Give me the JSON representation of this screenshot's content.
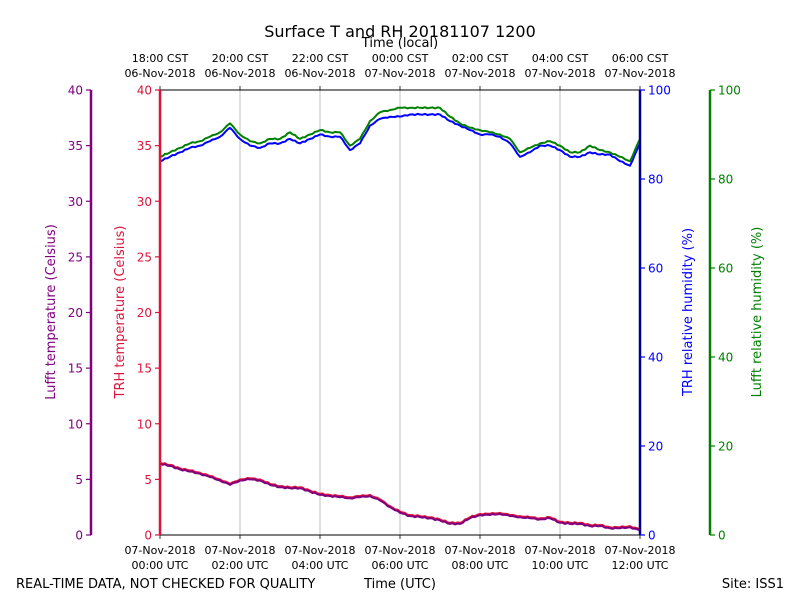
{
  "chart_data": {
    "type": "line",
    "title": "Surface T and RH 20181107 1200",
    "top_xlabel": "Time (local)",
    "xlabel": "Time (UTC)",
    "footer_left": "REAL-TIME DATA, NOT CHECKED FOR QUALITY",
    "footer_right": "Site: ISS1",
    "x_range_hours": [
      0,
      12
    ],
    "grid": "vertical",
    "bottom_ticks": [
      {
        "hour": 0,
        "line1": "07-Nov-2018",
        "line2": "00:00 UTC"
      },
      {
        "hour": 2,
        "line1": "07-Nov-2018",
        "line2": "02:00 UTC"
      },
      {
        "hour": 4,
        "line1": "07-Nov-2018",
        "line2": "04:00 UTC"
      },
      {
        "hour": 6,
        "line1": "07-Nov-2018",
        "line2": "06:00 UTC"
      },
      {
        "hour": 8,
        "line1": "07-Nov-2018",
        "line2": "08:00 UTC"
      },
      {
        "hour": 10,
        "line1": "07-Nov-2018",
        "line2": "10:00 UTC"
      },
      {
        "hour": 12,
        "line1": "07-Nov-2018",
        "line2": "12:00 UTC"
      }
    ],
    "top_ticks": [
      {
        "hour": 0,
        "line1": "18:00 CST",
        "line2": "06-Nov-2018"
      },
      {
        "hour": 2,
        "line1": "20:00 CST",
        "line2": "06-Nov-2018"
      },
      {
        "hour": 4,
        "line1": "22:00 CST",
        "line2": "06-Nov-2018"
      },
      {
        "hour": 6,
        "line1": "00:00 CST",
        "line2": "07-Nov-2018"
      },
      {
        "hour": 8,
        "line1": "02:00 CST",
        "line2": "07-Nov-2018"
      },
      {
        "hour": 10,
        "line1": "04:00 CST",
        "line2": "07-Nov-2018"
      },
      {
        "hour": 12,
        "line1": "06:00 CST",
        "line2": "07-Nov-2018"
      }
    ],
    "axes": {
      "lufft_temp": {
        "label": "Lufft temperature (Celsius)",
        "ylim": [
          0,
          40
        ],
        "ticks": [
          "0",
          "5",
          "10",
          "15",
          "20",
          "25",
          "30",
          "35",
          "40"
        ],
        "color": "#800080"
      },
      "trh_temp": {
        "label": "TRH temperature (Celsius)",
        "ylim": [
          0,
          40
        ],
        "ticks": [
          "0",
          "5",
          "10",
          "15",
          "20",
          "25",
          "30",
          "35",
          "40"
        ],
        "color": "#dc143c"
      },
      "trh_rh": {
        "label": "TRH relative humidity (%)",
        "ylim": [
          0,
          100
        ],
        "ticks": [
          "0",
          "20",
          "40",
          "60",
          "80",
          "100"
        ],
        "color": "#0000ff"
      },
      "lufft_rh": {
        "label": "Lufft relative humidity (%)",
        "ylim": [
          0,
          100
        ],
        "ticks": [
          "0",
          "20",
          "40",
          "60",
          "80",
          "100"
        ],
        "color": "#008000"
      }
    },
    "series": [
      {
        "name": "TRH relative humidity",
        "axis": "trh_rh",
        "color": "#0000ff",
        "x": [
          0,
          0.25,
          0.5,
          0.75,
          1.0,
          1.25,
          1.5,
          1.75,
          2.0,
          2.25,
          2.5,
          2.75,
          3.0,
          3.25,
          3.5,
          3.75,
          4.0,
          4.25,
          4.5,
          4.75,
          5.0,
          5.25,
          5.5,
          5.75,
          6.0,
          6.25,
          6.5,
          6.75,
          7.0,
          7.25,
          7.5,
          7.75,
          8.0,
          8.25,
          8.5,
          8.75,
          9.0,
          9.25,
          9.5,
          9.75,
          10.0,
          10.25,
          10.5,
          10.75,
          11.0,
          11.25,
          11.5,
          11.75,
          12.0
        ],
        "values": [
          84,
          85,
          86,
          87,
          87.5,
          88.5,
          89.5,
          91.5,
          89,
          87.5,
          87,
          88,
          88,
          89,
          88,
          89,
          90,
          89.5,
          89.5,
          86.5,
          88,
          92,
          93.5,
          94,
          94,
          94.5,
          94.5,
          94.5,
          94.5,
          93,
          92,
          91,
          90,
          90,
          89.5,
          88,
          85,
          86,
          87.5,
          87.5,
          86.5,
          85,
          85,
          86,
          85.5,
          85.5,
          84,
          83,
          88
        ]
      },
      {
        "name": "Lufft relative humidity",
        "axis": "lufft_rh",
        "color": "#008000",
        "x": [
          0,
          0.25,
          0.5,
          0.75,
          1.0,
          1.25,
          1.5,
          1.75,
          2.0,
          2.25,
          2.5,
          2.75,
          3.0,
          3.25,
          3.5,
          3.75,
          4.0,
          4.25,
          4.5,
          4.75,
          5.0,
          5.25,
          5.5,
          5.75,
          6.0,
          6.25,
          6.5,
          6.75,
          7.0,
          7.25,
          7.5,
          7.75,
          8.0,
          8.25,
          8.5,
          8.75,
          9.0,
          9.25,
          9.5,
          9.75,
          10.0,
          10.25,
          10.5,
          10.75,
          11.0,
          11.25,
          11.5,
          11.75,
          12.0
        ],
        "values": [
          85,
          86,
          87,
          88,
          88.5,
          89.5,
          90.5,
          92.5,
          90,
          88.5,
          88,
          89,
          89,
          90.5,
          89,
          90,
          91,
          90.5,
          90.5,
          87.5,
          89,
          93,
          95,
          95.5,
          96,
          96,
          96,
          96,
          96,
          94,
          92.5,
          91.5,
          91,
          90.5,
          90,
          89,
          86,
          87,
          88,
          88.5,
          87.5,
          86,
          86,
          87.5,
          86.5,
          86,
          85,
          84,
          89
        ]
      },
      {
        "name": "TRH temperature",
        "axis": "trh_temp",
        "color": "#dc143c",
        "x": [
          0,
          0.25,
          0.5,
          0.75,
          1.0,
          1.25,
          1.5,
          1.75,
          2.0,
          2.25,
          2.5,
          2.75,
          3.0,
          3.25,
          3.5,
          3.75,
          4.0,
          4.25,
          4.5,
          4.75,
          5.0,
          5.25,
          5.5,
          5.75,
          6.0,
          6.25,
          6.5,
          6.75,
          7.0,
          7.25,
          7.5,
          7.75,
          8.0,
          8.25,
          8.5,
          8.75,
          9.0,
          9.25,
          9.5,
          9.75,
          10.0,
          10.25,
          10.5,
          10.75,
          11.0,
          11.25,
          11.5,
          11.75,
          12.0
        ],
        "values": [
          6.5,
          6.3,
          6.0,
          5.8,
          5.6,
          5.3,
          5.0,
          4.6,
          5.0,
          5.1,
          5.0,
          4.6,
          4.4,
          4.3,
          4.3,
          4.0,
          3.7,
          3.6,
          3.5,
          3.4,
          3.5,
          3.6,
          3.2,
          2.6,
          2.1,
          1.8,
          1.7,
          1.6,
          1.4,
          1.1,
          1.1,
          1.6,
          1.9,
          1.9,
          2.0,
          1.8,
          1.7,
          1.6,
          1.5,
          1.6,
          1.2,
          1.1,
          1.1,
          0.9,
          0.9,
          0.7,
          0.7,
          0.8,
          0.5
        ]
      },
      {
        "name": "Lufft temperature",
        "axis": "lufft_temp",
        "color": "#800080",
        "x": [
          0,
          0.25,
          0.5,
          0.75,
          1.0,
          1.25,
          1.5,
          1.75,
          2.0,
          2.25,
          2.5,
          2.75,
          3.0,
          3.25,
          3.5,
          3.75,
          4.0,
          4.25,
          4.5,
          4.75,
          5.0,
          5.25,
          5.5,
          5.75,
          6.0,
          6.25,
          6.5,
          6.75,
          7.0,
          7.25,
          7.5,
          7.75,
          8.0,
          8.25,
          8.5,
          8.75,
          9.0,
          9.25,
          9.5,
          9.75,
          10.0,
          10.25,
          10.5,
          10.75,
          11.0,
          11.25,
          11.5,
          11.75,
          12.0
        ],
        "values": [
          6.4,
          6.2,
          5.9,
          5.7,
          5.5,
          5.2,
          4.9,
          4.5,
          4.9,
          5.0,
          4.9,
          4.5,
          4.3,
          4.2,
          4.2,
          3.9,
          3.6,
          3.5,
          3.4,
          3.3,
          3.4,
          3.5,
          3.1,
          2.5,
          2.0,
          1.7,
          1.6,
          1.5,
          1.3,
          1.0,
          1.0,
          1.5,
          1.8,
          1.8,
          1.9,
          1.7,
          1.6,
          1.5,
          1.4,
          1.5,
          1.1,
          1.0,
          1.0,
          0.8,
          0.8,
          0.6,
          0.6,
          0.7,
          0.4
        ]
      }
    ]
  }
}
